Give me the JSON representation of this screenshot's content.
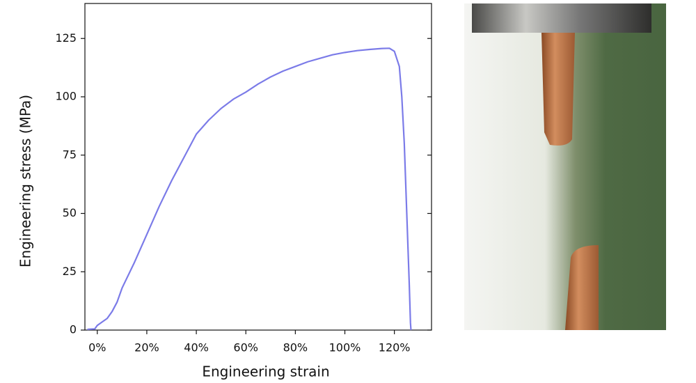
{
  "chart_data": {
    "type": "line",
    "x_label": "Engineering strain",
    "y_label": "Engineering stress (MPa)",
    "xlim": [
      -5,
      135
    ],
    "ylim": [
      0,
      140
    ],
    "xticks": [
      {
        "value": 0,
        "label": "0%"
      },
      {
        "value": 20,
        "label": "20%"
      },
      {
        "value": 40,
        "label": "40%"
      },
      {
        "value": 60,
        "label": "60%"
      },
      {
        "value": 80,
        "label": "80%"
      },
      {
        "value": 100,
        "label": "100%"
      },
      {
        "value": 120,
        "label": "120%"
      }
    ],
    "yticks": [
      0,
      25,
      50,
      75,
      100,
      125
    ],
    "series": [
      {
        "color": "#7b7be8",
        "x": [
          -4,
          -1,
          0,
          2,
          4,
          6,
          8,
          10,
          15,
          20,
          25,
          30,
          35,
          40,
          45,
          50,
          55,
          60,
          65,
          70,
          75,
          80,
          85,
          90,
          95,
          100,
          105,
          110,
          115,
          118,
          120,
          122,
          123,
          124,
          125,
          126,
          126.5,
          126.7
        ],
        "values": [
          0.3,
          0.5,
          2,
          3.5,
          5,
          8,
          12,
          18,
          29,
          41,
          53,
          64,
          74,
          84,
          90,
          95,
          99,
          102,
          105.5,
          108.5,
          111,
          113,
          115,
          116.5,
          118,
          119,
          119.8,
          120.3,
          120.7,
          120.8,
          119.5,
          113,
          100,
          80,
          50,
          20,
          3,
          0
        ]
      }
    ]
  }
}
